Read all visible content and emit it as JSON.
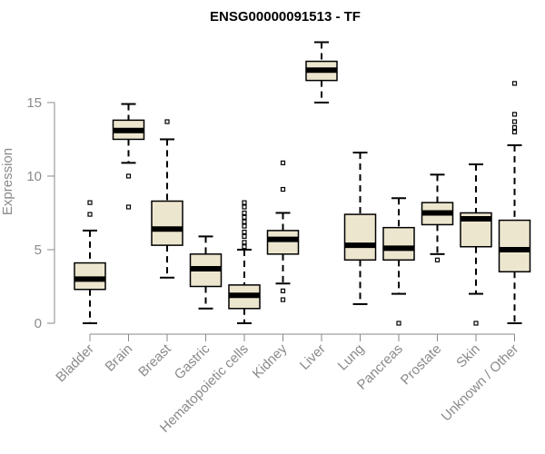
{
  "chart_data": {
    "type": "boxplot",
    "title": "ENSG00000091513 - TF",
    "xlabel": "",
    "ylabel": "Expression",
    "ylim": [
      0,
      19.5
    ],
    "yticks": [
      0,
      5,
      10,
      15
    ],
    "grid": false,
    "box_fill": "#ede6cf",
    "categories": [
      "Bladder",
      "Brain",
      "Breast",
      "Gastric",
      "Hematopoietic cells",
      "Kidney",
      "Liver",
      "Lung",
      "Pancreas",
      "Prostate",
      "Skin",
      "Unknown / Other"
    ],
    "boxes": [
      {
        "category": "Bladder",
        "whisker_low": 0.0,
        "q1": 2.3,
        "median": 3.0,
        "q3": 4.1,
        "whisker_high": 6.3,
        "outliers": [
          7.4,
          8.2
        ]
      },
      {
        "category": "Brain",
        "whisker_low": 10.9,
        "q1": 12.5,
        "median": 13.1,
        "q3": 13.8,
        "whisker_high": 14.9,
        "outliers": [
          10.0,
          7.9
        ]
      },
      {
        "category": "Breast",
        "whisker_low": 3.1,
        "q1": 5.3,
        "median": 6.4,
        "q3": 8.3,
        "whisker_high": 12.5,
        "outliers": [
          13.7
        ]
      },
      {
        "category": "Gastric",
        "whisker_low": 1.0,
        "q1": 2.5,
        "median": 3.7,
        "q3": 4.7,
        "whisker_high": 5.9,
        "outliers": []
      },
      {
        "category": "Hematopoietic cells",
        "whisker_low": 0.0,
        "q1": 1.0,
        "median": 1.9,
        "q3": 2.6,
        "whisker_high": 5.0,
        "outliers": [
          5.2,
          5.5,
          5.9,
          6.2,
          6.6,
          6.9,
          7.2,
          7.5,
          7.9,
          8.2
        ]
      },
      {
        "category": "Kidney",
        "whisker_low": 2.7,
        "q1": 4.7,
        "median": 5.7,
        "q3": 6.3,
        "whisker_high": 7.5,
        "outliers": [
          10.9,
          9.1,
          2.2,
          1.6
        ]
      },
      {
        "category": "Liver",
        "whisker_low": 15.0,
        "q1": 16.5,
        "median": 17.2,
        "q3": 17.8,
        "whisker_high": 19.1,
        "outliers": []
      },
      {
        "category": "Lung",
        "whisker_low": 1.3,
        "q1": 4.3,
        "median": 5.3,
        "q3": 7.4,
        "whisker_high": 11.6,
        "outliers": []
      },
      {
        "category": "Pancreas",
        "whisker_low": 2.0,
        "q1": 4.3,
        "median": 5.1,
        "q3": 6.5,
        "whisker_high": 8.5,
        "outliers": [
          0.0
        ]
      },
      {
        "category": "Prostate",
        "whisker_low": 4.7,
        "q1": 6.7,
        "median": 7.5,
        "q3": 8.2,
        "whisker_high": 10.1,
        "outliers": [
          4.3
        ]
      },
      {
        "category": "Skin",
        "whisker_low": 2.0,
        "q1": 5.2,
        "median": 7.1,
        "q3": 7.5,
        "whisker_high": 10.8,
        "outliers": [
          0.0
        ]
      },
      {
        "category": "Unknown / Other",
        "whisker_low": 0.0,
        "q1": 3.5,
        "median": 5.0,
        "q3": 7.0,
        "whisker_high": 12.1,
        "outliers": [
          13.0,
          13.3,
          13.7,
          14.2,
          16.3
        ]
      }
    ]
  }
}
